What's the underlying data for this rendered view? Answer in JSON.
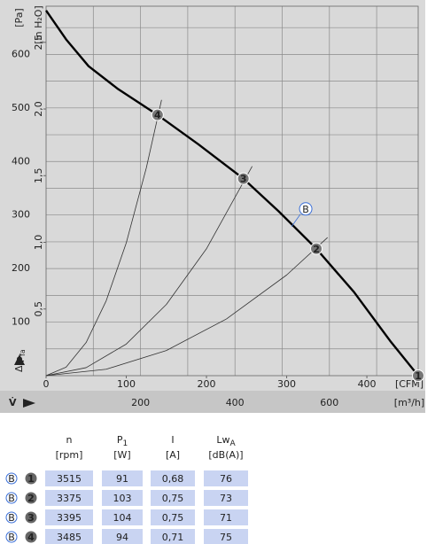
{
  "chart_data": {
    "type": "line",
    "xlabel_unit": "[CFM]",
    "x2label_unit": "[m³/h]",
    "ylabel_unit": "[Pa]",
    "y2label_unit": "[in H₂O]",
    "ylabel": "Δ p",
    "ylabel_sub": "fa",
    "xlabel": "V̇",
    "xlim": [
      0,
      464
    ],
    "xticks": [
      0,
      100,
      200,
      300,
      400
    ],
    "x2lim": [
      0,
      788
    ],
    "x2ticks": [
      200,
      400,
      600
    ],
    "x2grid": [
      100,
      200,
      300,
      400,
      500,
      600,
      700
    ],
    "ylim": [
      0,
      690
    ],
    "yticks": [
      100,
      200,
      300,
      400,
      500,
      600
    ],
    "ygrid": [
      50,
      100,
      150,
      200,
      250,
      300,
      350,
      400,
      450,
      500,
      550,
      600,
      650
    ],
    "y2lim": [
      0,
      2.771
    ],
    "y2ticks": [
      {
        "value": 0.5,
        "label": "0,5"
      },
      {
        "value": 1.0,
        "label": "1,0"
      },
      {
        "value": 1.5,
        "label": "1,5"
      },
      {
        "value": 2.0,
        "label": "2,0"
      },
      {
        "value": 2.5,
        "label": "2,5"
      }
    ],
    "series": [
      {
        "name": "B",
        "color": "#000000",
        "x": [
          0,
          25,
          53,
          90,
          139,
          190,
          246,
          290,
          337,
          384,
          429,
          464
        ],
        "values": [
          682,
          628,
          578,
          535,
          487,
          432,
          368,
          307,
          237,
          156,
          65,
          0
        ]
      },
      {
        "color": "#333333",
        "x": [
          0,
          25,
          50,
          75,
          100,
          125,
          144
        ],
        "values": [
          0,
          16,
          62,
          140,
          248,
          388,
          515
        ]
      },
      {
        "color": "#333333",
        "x": [
          0,
          50,
          100,
          150,
          200,
          257
        ],
        "values": [
          0,
          15,
          59,
          133,
          237,
          391
        ]
      },
      {
        "color": "#333333",
        "x": [
          0,
          75,
          150,
          225,
          300,
          351
        ],
        "values": [
          0,
          12,
          47,
          106,
          188,
          258
        ]
      }
    ],
    "points": [
      {
        "label": "1",
        "x": 464,
        "y": 0
      },
      {
        "label": "2",
        "x": 337,
        "y": 237
      },
      {
        "label": "3",
        "x": 246,
        "y": 368
      },
      {
        "label": "4",
        "x": 139,
        "y": 487
      }
    ]
  },
  "table": {
    "headers": [
      {
        "name": "n",
        "unit": "[rpm]"
      },
      {
        "name": "P",
        "sub": "1",
        "unit": "[W]"
      },
      {
        "name": "I",
        "unit": "[A]"
      },
      {
        "name": "Lw",
        "sub": "A",
        "unit": "[dB(A)]"
      }
    ],
    "rows": [
      {
        "curve": "B",
        "point": "1",
        "cells": [
          "3515",
          "91",
          "0,68",
          "76"
        ]
      },
      {
        "curve": "B",
        "point": "2",
        "cells": [
          "3375",
          "103",
          "0,75",
          "73"
        ]
      },
      {
        "curve": "B",
        "point": "3",
        "cells": [
          "3395",
          "104",
          "0,75",
          "71"
        ]
      },
      {
        "curve": "B",
        "point": "4",
        "cells": [
          "3485",
          "94",
          "0,71",
          "75"
        ]
      }
    ]
  }
}
